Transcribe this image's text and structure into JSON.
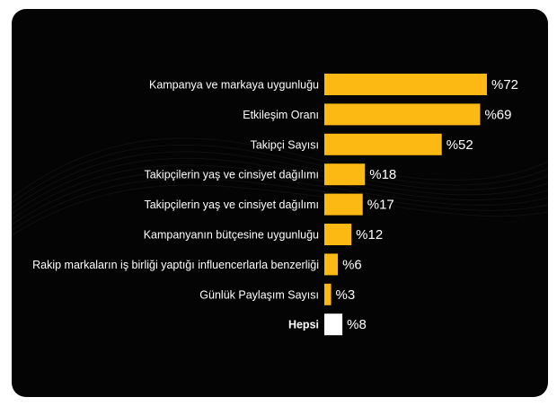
{
  "chart_data": {
    "type": "bar",
    "orientation": "horizontal",
    "categories": [
      "Kampanya ve markaya uygunluğu",
      "Etkileşim Oranı",
      "Takipçi Sayısı",
      "Takipçilerin yaş ve cinsiyet dağılımı",
      "Takipçilerin yaş ve cinsiyet dağılımı",
      "Kampanyanın bütçesine uygunluğu",
      "Rakip markaların iş birliği yaptığı influencerlarla benzerliği",
      "Günlük Paylaşım Sayısı",
      "Hepsi"
    ],
    "values": [
      72,
      69,
      52,
      18,
      17,
      12,
      6,
      3,
      8
    ],
    "value_labels": [
      "%72",
      "%69",
      "%52",
      "%18",
      "%17",
      "%12",
      "%6",
      "%3",
      "%8"
    ],
    "bar_colors": [
      "#FDB913",
      "#FDB913",
      "#FDB913",
      "#FDB913",
      "#FDB913",
      "#FDB913",
      "#FDB913",
      "#FDB913",
      "#FFFFFF"
    ],
    "bold_categories": [
      "Hepsi"
    ],
    "xlim": [
      0,
      72
    ],
    "grid": false,
    "legend": "none"
  },
  "colors": {
    "background": "#040404",
    "accent": "#FDB913",
    "highlight": "#FFFFFF",
    "text": "#FFFFFF"
  }
}
